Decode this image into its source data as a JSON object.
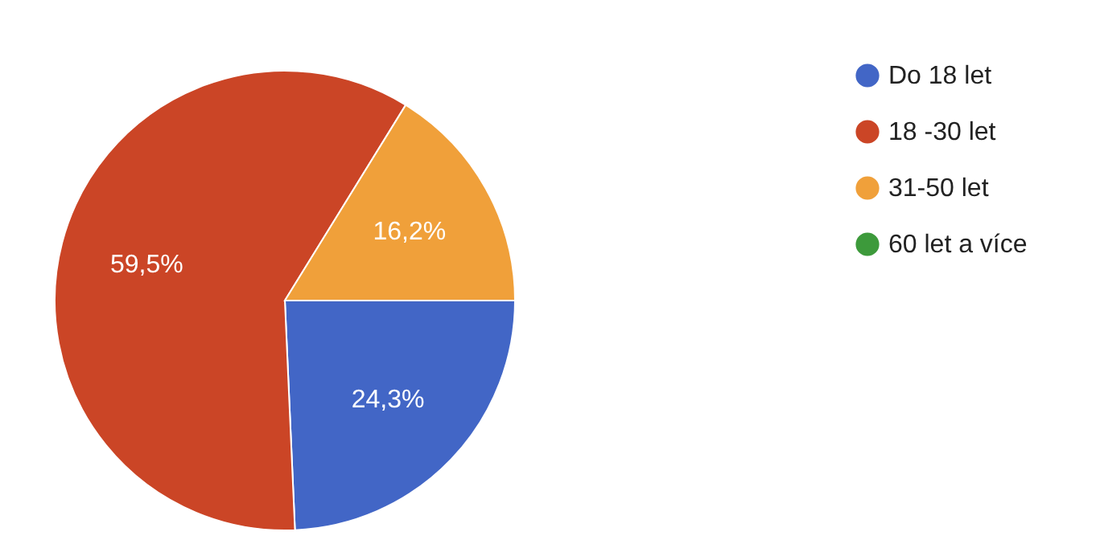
{
  "chart_data": {
    "type": "pie",
    "categories": [
      "Do 18 let",
      "18 -30 let",
      "31-50 let",
      "60 let a více"
    ],
    "values": [
      24.3,
      59.5,
      16.2,
      0
    ],
    "value_labels": [
      "24,3%",
      "59,5%",
      "16,2%",
      null
    ],
    "colors": [
      "#4266c6",
      "#cb4526",
      "#f0a03a",
      "#3d9a3b"
    ],
    "legend": "top right"
  }
}
